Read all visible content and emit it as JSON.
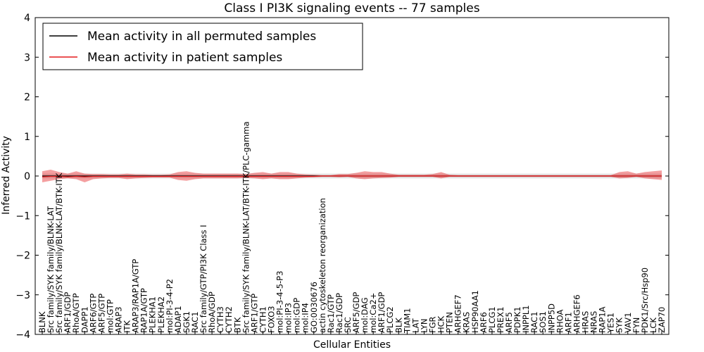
{
  "chart_data": {
    "type": "line",
    "title": "Class I PI3K signaling events -- 77 samples",
    "xlabel": "Cellular Entities",
    "ylabel": "Inferred Activity",
    "ylim": [
      -4,
      4
    ],
    "yticks": [
      "−4",
      "−3",
      "−2",
      "−1",
      "0",
      "1",
      "2",
      "3",
      "4"
    ],
    "grid": false,
    "legend_position": "top-left",
    "legend": [
      {
        "label": "Mean activity in all permuted samples",
        "color": "#000000"
      },
      {
        "label": "Mean activity in patient samples",
        "color": "#e41a1c"
      }
    ],
    "categories": [
      "BLNK",
      "Src family/SYK family/BLNK-LAT",
      "Src family/SYK family/BLNK-LAT/BTK-ITK",
      "ARF1/GDP",
      "RhoA/GTP",
      "DAPP1",
      "ARF6/GTP",
      "ARF5/GTP",
      "mol:GTP",
      "ARAP3",
      "ITK",
      "ARAP3/RAP1A/GTP",
      "RAP1A/GTP",
      "PLEKHA1",
      "PLEKHA2",
      "mol:PI-3-4-P2",
      "ADAP1",
      "SGK1",
      "RAC1",
      "Src family/GTP/PI3K Class I",
      "RhoA/GDP",
      "CYTH3",
      "CYTH2",
      "BTK",
      "Src family/SYK family/BLNK-LAT/BTK-ITK/PLC-gamma",
      "ARF1/GTP",
      "CYTH1",
      "FOXO3",
      "mol:PI-3-4-5-P3",
      "mol:IP3",
      "mol:GDP",
      "mol:IP4",
      "GO:0030676",
      "actin cytoskeleton reorganization",
      "Rac1/GTP",
      "Rac1/GDP",
      "SRC",
      "ARF5/GDP",
      "mol:DAG",
      "mol:Ca2+",
      "ARF1/GDP",
      "PLCG2",
      "BLK",
      "TIAM1",
      "LAT",
      "LYN",
      "FGR",
      "HCK",
      "PTEN",
      "ARHGEF7",
      "KRAS",
      "HSP90AA1",
      "ARF6",
      "PLCG1",
      "PREX1",
      "ARF5",
      "PDPK1",
      "INPPL1",
      "RAC1",
      "SOS1",
      "INPP5D",
      "RHOA",
      "ARF1",
      "ARHGEF6",
      "HRAS",
      "NRAS",
      "RAP1A",
      "YES1",
      "SYK",
      "VAV1",
      "FYN",
      "PDK1/Src/Hsp90",
      "LCK",
      "ZAP70"
    ],
    "series": [
      {
        "name": "Mean activity in all permuted samples",
        "values": [
          0,
          0,
          0,
          0,
          0,
          0,
          0,
          0,
          0,
          0,
          0,
          0,
          0,
          0,
          0,
          0,
          0,
          0,
          0,
          0,
          0,
          0,
          0,
          0,
          0,
          0,
          0,
          0,
          0,
          0,
          0,
          0,
          0,
          0,
          0,
          0,
          0,
          0,
          0,
          0,
          0,
          0,
          0,
          0,
          0,
          0,
          0,
          0,
          0,
          0,
          0,
          0,
          0,
          0,
          0,
          0,
          0,
          0,
          0,
          0,
          0,
          0,
          0,
          0,
          0,
          0,
          0,
          0,
          0,
          0,
          0,
          0,
          0,
          0
        ],
        "band_lower": [
          -0.06,
          -0.06,
          -0.06,
          -0.06,
          -0.06,
          -0.06,
          -0.06,
          -0.06,
          -0.06,
          -0.06,
          -0.06,
          -0.06,
          -0.06,
          -0.06,
          -0.06,
          -0.06,
          -0.06,
          -0.06,
          -0.06,
          -0.06,
          -0.06,
          -0.06,
          -0.06,
          -0.06,
          -0.06,
          -0.06,
          -0.06,
          -0.06,
          -0.06,
          -0.06,
          -0.06,
          -0.06,
          -0.06,
          -0.06,
          -0.06,
          -0.06,
          -0.06,
          -0.06,
          -0.06,
          -0.06,
          -0.06,
          -0.06,
          -0.06,
          -0.06,
          -0.06,
          -0.06,
          -0.06,
          -0.06,
          -0.06,
          -0.06,
          -0.06,
          -0.06,
          -0.06,
          -0.06,
          -0.06,
          -0.06,
          -0.06,
          -0.06,
          -0.06,
          -0.06,
          -0.06,
          -0.06,
          -0.06,
          -0.06,
          -0.06,
          -0.06,
          -0.06,
          -0.06,
          -0.06,
          -0.06,
          -0.06,
          -0.06,
          -0.06,
          -0.06
        ],
        "band_upper": [
          0.06,
          0.06,
          0.06,
          0.06,
          0.06,
          0.06,
          0.06,
          0.06,
          0.06,
          0.06,
          0.06,
          0.06,
          0.06,
          0.06,
          0.06,
          0.06,
          0.06,
          0.06,
          0.06,
          0.06,
          0.06,
          0.06,
          0.06,
          0.06,
          0.06,
          0.06,
          0.06,
          0.06,
          0.06,
          0.06,
          0.06,
          0.06,
          0.06,
          0.06,
          0.06,
          0.06,
          0.06,
          0.06,
          0.06,
          0.06,
          0.06,
          0.06,
          0.06,
          0.06,
          0.06,
          0.06,
          0.06,
          0.06,
          0.06,
          0.06,
          0.06,
          0.06,
          0.06,
          0.06,
          0.06,
          0.06,
          0.06,
          0.06,
          0.06,
          0.06,
          0.06,
          0.06,
          0.06,
          0.06,
          0.06,
          0.06,
          0.06,
          0.06,
          0.06,
          0.06,
          0.06,
          0.06,
          0.06,
          0.06
        ]
      },
      {
        "name": "Mean activity in patient samples",
        "values": [
          -0.02,
          -0.01,
          -0.01,
          -0.02,
          -0.01,
          -0.02,
          -0.01,
          -0.01,
          -0.01,
          -0.01,
          -0.01,
          -0.01,
          -0.01,
          -0.01,
          -0.01,
          -0.01,
          -0.01,
          -0.01,
          -0.01,
          -0.01,
          -0.01,
          -0.01,
          -0.01,
          -0.01,
          -0.01,
          -0.01,
          -0.01,
          -0.01,
          -0.01,
          -0.01,
          -0.01,
          -0.01,
          -0.01,
          0,
          0,
          0,
          0,
          0,
          0,
          0,
          0,
          0,
          0,
          0,
          0,
          0,
          0,
          0,
          0,
          0,
          0,
          0,
          0,
          0,
          0,
          0,
          0,
          0,
          0,
          0,
          0,
          0,
          0,
          0,
          0,
          0,
          0,
          0,
          0,
          0,
          0,
          0,
          0,
          0
        ],
        "band_lower": [
          -0.16,
          -0.12,
          -0.08,
          -0.06,
          -0.08,
          -0.16,
          -0.08,
          -0.06,
          -0.05,
          -0.05,
          -0.08,
          -0.06,
          -0.05,
          -0.04,
          -0.04,
          -0.04,
          -0.1,
          -0.12,
          -0.08,
          -0.06,
          -0.06,
          -0.06,
          -0.06,
          -0.06,
          -0.05,
          -0.06,
          -0.08,
          -0.06,
          -0.08,
          -0.08,
          -0.06,
          -0.04,
          -0.03,
          -0.02,
          -0.02,
          -0.03,
          -0.02,
          -0.06,
          -0.08,
          -0.06,
          -0.05,
          -0.04,
          -0.02,
          -0.02,
          -0.02,
          -0.02,
          -0.02,
          -0.06,
          -0.02,
          -0.02,
          -0.02,
          -0.02,
          -0.02,
          -0.02,
          -0.02,
          -0.02,
          -0.02,
          -0.02,
          -0.02,
          -0.02,
          -0.02,
          -0.02,
          -0.02,
          -0.02,
          -0.02,
          -0.02,
          -0.02,
          -0.02,
          -0.06,
          -0.05,
          -0.02,
          -0.06,
          -0.08,
          -0.1
        ],
        "band_upper": [
          0.12,
          0.16,
          0.1,
          0.06,
          0.12,
          0.06,
          0.05,
          0.05,
          0.04,
          0.04,
          0.06,
          0.04,
          0.04,
          0.03,
          0.03,
          0.04,
          0.1,
          0.12,
          0.08,
          0.06,
          0.06,
          0.06,
          0.06,
          0.06,
          0.05,
          0.08,
          0.1,
          0.06,
          0.1,
          0.1,
          0.06,
          0.04,
          0.03,
          0.02,
          0.02,
          0.05,
          0.05,
          0.08,
          0.12,
          0.1,
          0.1,
          0.06,
          0.03,
          0.03,
          0.03,
          0.03,
          0.05,
          0.1,
          0.03,
          0.02,
          0.02,
          0.02,
          0.02,
          0.02,
          0.02,
          0.02,
          0.02,
          0.02,
          0.02,
          0.02,
          0.02,
          0.02,
          0.02,
          0.02,
          0.02,
          0.02,
          0.02,
          0.02,
          0.1,
          0.12,
          0.06,
          0.1,
          0.12,
          0.14
        ]
      }
    ]
  }
}
